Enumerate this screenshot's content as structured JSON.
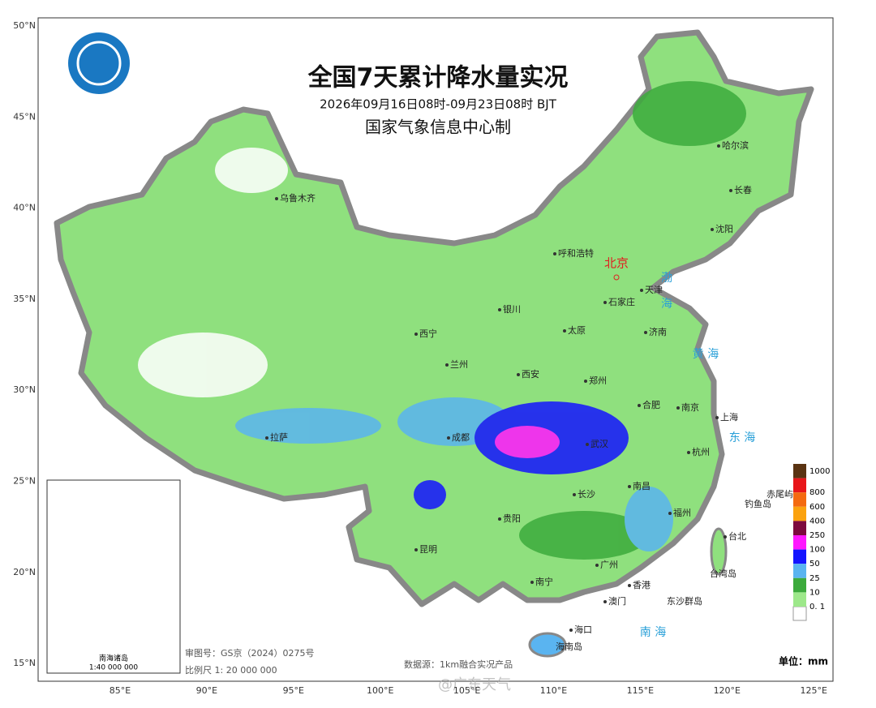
{
  "header": {
    "title": "全国7天累计降水量实况",
    "subtitle": "2026年09月16日08时-09月23日08时 BJT",
    "producer": "国家气象信息中心制"
  },
  "axes": {
    "lat": [
      "50°N",
      "45°N",
      "40°N",
      "35°N",
      "30°N",
      "25°N",
      "20°N",
      "15°N"
    ],
    "lon": [
      "85°E",
      "90°E",
      "95°E",
      "100°E",
      "105°E",
      "110°E",
      "115°E",
      "120°E",
      "125°E"
    ]
  },
  "cities": [
    "乌鲁木齐",
    "哈尔滨",
    "长春",
    "沈阳",
    "呼和浩特",
    "天津",
    "石家庄",
    "银川",
    "太原",
    "济南",
    "西宁",
    "兰州",
    "西安",
    "郑州",
    "合肥",
    "南京",
    "上海",
    "拉萨",
    "成都",
    "武汉",
    "杭州",
    "长沙",
    "南昌",
    "贵阳",
    "福州",
    "台北",
    "昆明",
    "广州",
    "南宁",
    "香港",
    "澳门",
    "海口",
    "海南岛",
    "钓鱼岛",
    "赤尾屿",
    "东沙群岛",
    "台湾岛"
  ],
  "capital": "北京",
  "seas": [
    "渤",
    "海",
    "黄 海",
    "东 海",
    "南 海"
  ],
  "legend": {
    "unit": "单位：mm",
    "items": [
      {
        "label": "1000",
        "color": "#5a3312"
      },
      {
        "label": "800",
        "color": "#e8161a"
      },
      {
        "label": "600",
        "color": "#f46a10"
      },
      {
        "label": "400",
        "color": "#fba20f"
      },
      {
        "label": "250",
        "color": "#7d0a3e"
      },
      {
        "label": "100",
        "color": "#ff18ff"
      },
      {
        "label": "50",
        "color": "#1414ff"
      },
      {
        "label": "25",
        "color": "#5ab4f0"
      },
      {
        "label": "10",
        "color": "#3caa3c"
      },
      {
        "label": "0. 1",
        "color": "#9de88a"
      }
    ]
  },
  "inset": {
    "title": "南海诸岛",
    "scale": "1:40 000 000"
  },
  "footer": {
    "approval": "审图号：GS京（2024）0275号",
    "scale": "比例尺 1: 20 000 000",
    "source": "数据源：1km融合实况产品",
    "watermark": "@广东天气"
  }
}
